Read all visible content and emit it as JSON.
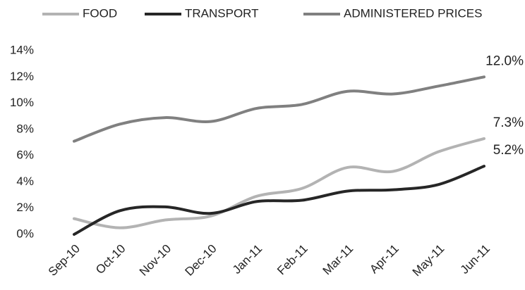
{
  "chart_data": {
    "type": "line",
    "categories": [
      "Sep-10",
      "Oct-10",
      "Nov-10",
      "Dec-10",
      "Jan-11",
      "Feb-11",
      "Mar-11",
      "Apr-11",
      "May-11",
      "Jun-11"
    ],
    "series": [
      {
        "name": "FOOD",
        "color": "#b3b3b3",
        "values": [
          1.2,
          0.5,
          1.1,
          1.4,
          2.9,
          3.5,
          5.1,
          4.8,
          6.3,
          7.3
        ],
        "value_labels": [
          null,
          null,
          null,
          null,
          null,
          null,
          null,
          null,
          null,
          "7.3%"
        ]
      },
      {
        "name": "TRANSPORT",
        "color": "#262626",
        "values": [
          0,
          1.8,
          2.1,
          1.6,
          2.5,
          2.6,
          3.3,
          3.4,
          3.8,
          5.2
        ],
        "value_labels": [
          null,
          null,
          null,
          null,
          null,
          null,
          null,
          null,
          null,
          "5.2%"
        ]
      },
      {
        "name": "ADMINISTERED PRICES",
        "color": "#808080",
        "values": [
          7.1,
          8.4,
          8.9,
          8.6,
          9.6,
          9.9,
          10.9,
          10.7,
          11.3,
          12.0
        ],
        "value_labels": [
          null,
          null,
          null,
          null,
          null,
          null,
          null,
          null,
          null,
          "12.0%"
        ]
      }
    ],
    "ylim": [
      0,
      14
    ],
    "yticks": [
      {
        "value": 0,
        "label": "0%"
      },
      {
        "value": 2,
        "label": "2%"
      },
      {
        "value": 4,
        "label": "4%"
      },
      {
        "value": 6,
        "label": "6%"
      },
      {
        "value": 8,
        "label": "8%"
      },
      {
        "value": 10,
        "label": "10%"
      },
      {
        "value": 12,
        "label": "12%"
      },
      {
        "value": 14,
        "label": "14%"
      }
    ],
    "grid": false,
    "legend": "top"
  }
}
